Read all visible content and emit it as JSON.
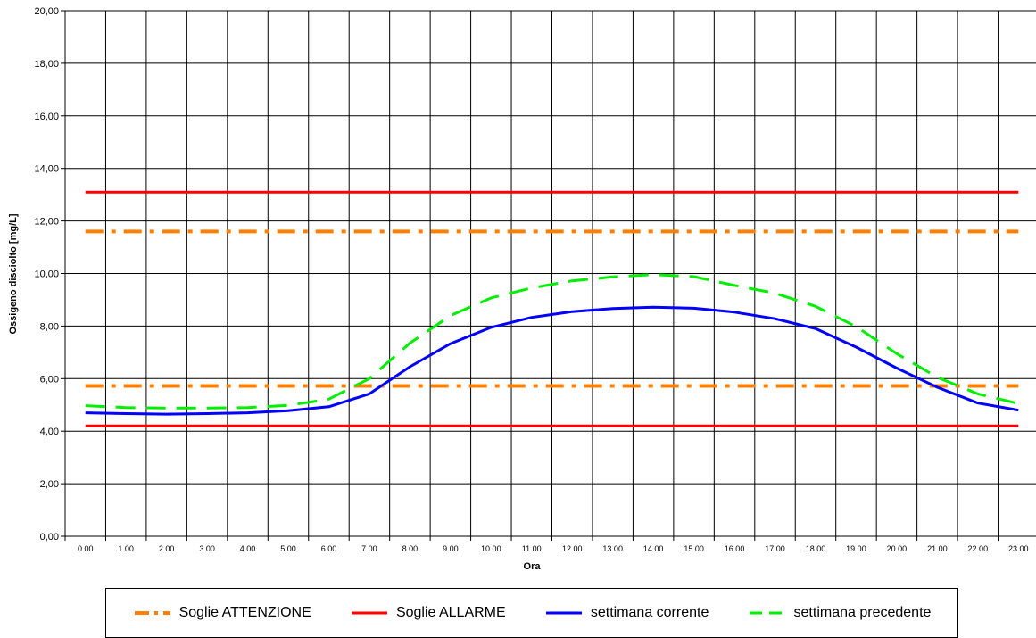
{
  "chart_data": {
    "type": "line",
    "xlabel": "Ora",
    "ylabel": "Ossigeno disciolto [mg/L]",
    "ylim": [
      0,
      20
    ],
    "yticks": [
      "0,00",
      "2,00",
      "4,00",
      "6,00",
      "8,00",
      "10,00",
      "12,00",
      "14,00",
      "16,00",
      "18,00",
      "20,00"
    ],
    "categories": [
      "0.00",
      "1.00",
      "2.00",
      "3.00",
      "4.00",
      "5.00",
      "6.00",
      "7.00",
      "8.00",
      "9.00",
      "10.00",
      "11.00",
      "12.00",
      "13.00",
      "14.00",
      "15.00",
      "16.00",
      "17.00",
      "18.00",
      "19.00",
      "20.00",
      "21.00",
      "22.00",
      "23.00"
    ],
    "grid": true,
    "legend_position": "bottom",
    "series": [
      {
        "name": "Soglie ATTENZIONE",
        "color": "#ff8000",
        "style": "dash-dot",
        "values": [
          11.6,
          11.6,
          11.6,
          11.6,
          11.6,
          11.6,
          11.6,
          11.6,
          11.6,
          11.6,
          11.6,
          11.6,
          11.6,
          11.6,
          11.6,
          11.6,
          11.6,
          11.6,
          11.6,
          11.6,
          11.6,
          11.6,
          11.6,
          11.6
        ]
      },
      {
        "name": "Soglie ATTENZIONE (inferiore)",
        "color": "#ff8000",
        "style": "dash-dot",
        "legend": false,
        "values": [
          5.72,
          5.72,
          5.72,
          5.72,
          5.72,
          5.72,
          5.72,
          5.72,
          5.72,
          5.72,
          5.72,
          5.72,
          5.72,
          5.72,
          5.72,
          5.72,
          5.72,
          5.72,
          5.72,
          5.72,
          5.72,
          5.72,
          5.72,
          5.72
        ]
      },
      {
        "name": "Soglie ALLARME",
        "color": "#ff0000",
        "style": "solid",
        "values": [
          13.1,
          13.1,
          13.1,
          13.1,
          13.1,
          13.1,
          13.1,
          13.1,
          13.1,
          13.1,
          13.1,
          13.1,
          13.1,
          13.1,
          13.1,
          13.1,
          13.1,
          13.1,
          13.1,
          13.1,
          13.1,
          13.1,
          13.1,
          13.1
        ]
      },
      {
        "name": "Soglie ALLARME (inferiore)",
        "color": "#ff0000",
        "style": "solid",
        "legend": false,
        "values": [
          4.2,
          4.2,
          4.2,
          4.2,
          4.2,
          4.2,
          4.2,
          4.2,
          4.2,
          4.2,
          4.2,
          4.2,
          4.2,
          4.2,
          4.2,
          4.2,
          4.2,
          4.2,
          4.2,
          4.2,
          4.2,
          4.2,
          4.2,
          4.2
        ]
      },
      {
        "name": "settimana corrente",
        "color": "#0000ff",
        "style": "solid",
        "values": [
          4.7,
          4.67,
          4.65,
          4.67,
          4.7,
          4.78,
          4.93,
          5.42,
          6.45,
          7.33,
          7.95,
          8.33,
          8.55,
          8.67,
          8.72,
          8.68,
          8.53,
          8.28,
          7.9,
          7.2,
          6.4,
          5.67,
          5.07,
          4.8
        ]
      },
      {
        "name": "settimana precedente",
        "color": "#00ee00",
        "style": "dashed",
        "values": [
          4.97,
          4.9,
          4.88,
          4.88,
          4.9,
          4.98,
          5.22,
          6.0,
          7.35,
          8.4,
          9.07,
          9.45,
          9.72,
          9.87,
          9.96,
          9.88,
          9.55,
          9.25,
          8.75,
          7.98,
          6.95,
          6.05,
          5.42,
          5.05
        ]
      }
    ]
  },
  "legend": {
    "attenzione": "Soglie ATTENZIONE",
    "allarme": "Soglie ALLARME",
    "corrente": "settimana corrente",
    "precedente": "settimana precedente"
  }
}
